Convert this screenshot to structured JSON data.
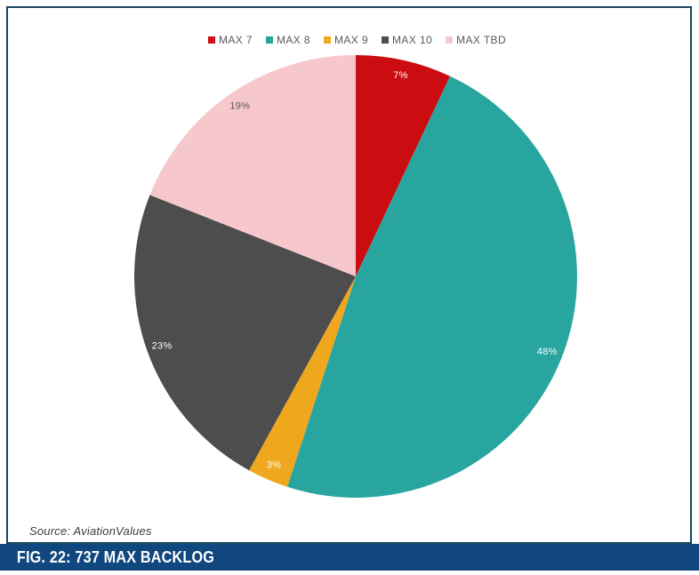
{
  "figure": {
    "source_label": "Source: AviationValues",
    "caption": "FIG. 22: 737 MAX BACKLOG"
  },
  "colors": {
    "panel_border": "#16455f",
    "caption_bar": "#11477f",
    "caption_text": "#ffffff",
    "legend_text": "#595959",
    "source_text": "#3c3c3c"
  },
  "chart_data": {
    "type": "pie",
    "title": "",
    "categories": [
      "MAX 7",
      "MAX 8",
      "MAX 9",
      "MAX 10",
      "MAX TBD"
    ],
    "values": [
      7,
      48,
      3,
      23,
      19
    ],
    "unit": "%",
    "slice_labels": [
      "7%",
      "48%",
      "3%",
      "23%",
      "19%"
    ],
    "slice_colors": [
      "#cb0c10",
      "#29a5a0",
      "#efa71d",
      "#4d4d4d",
      "#f6c8cc"
    ],
    "slice_label_colors": [
      "#ffffff",
      "#ffffff",
      "#ffffff",
      "#ffffff",
      "#595959"
    ],
    "start_angle_deg": 0,
    "direction": "clockwise",
    "legend_position": "top",
    "label_radius_ratio": 0.93
  }
}
